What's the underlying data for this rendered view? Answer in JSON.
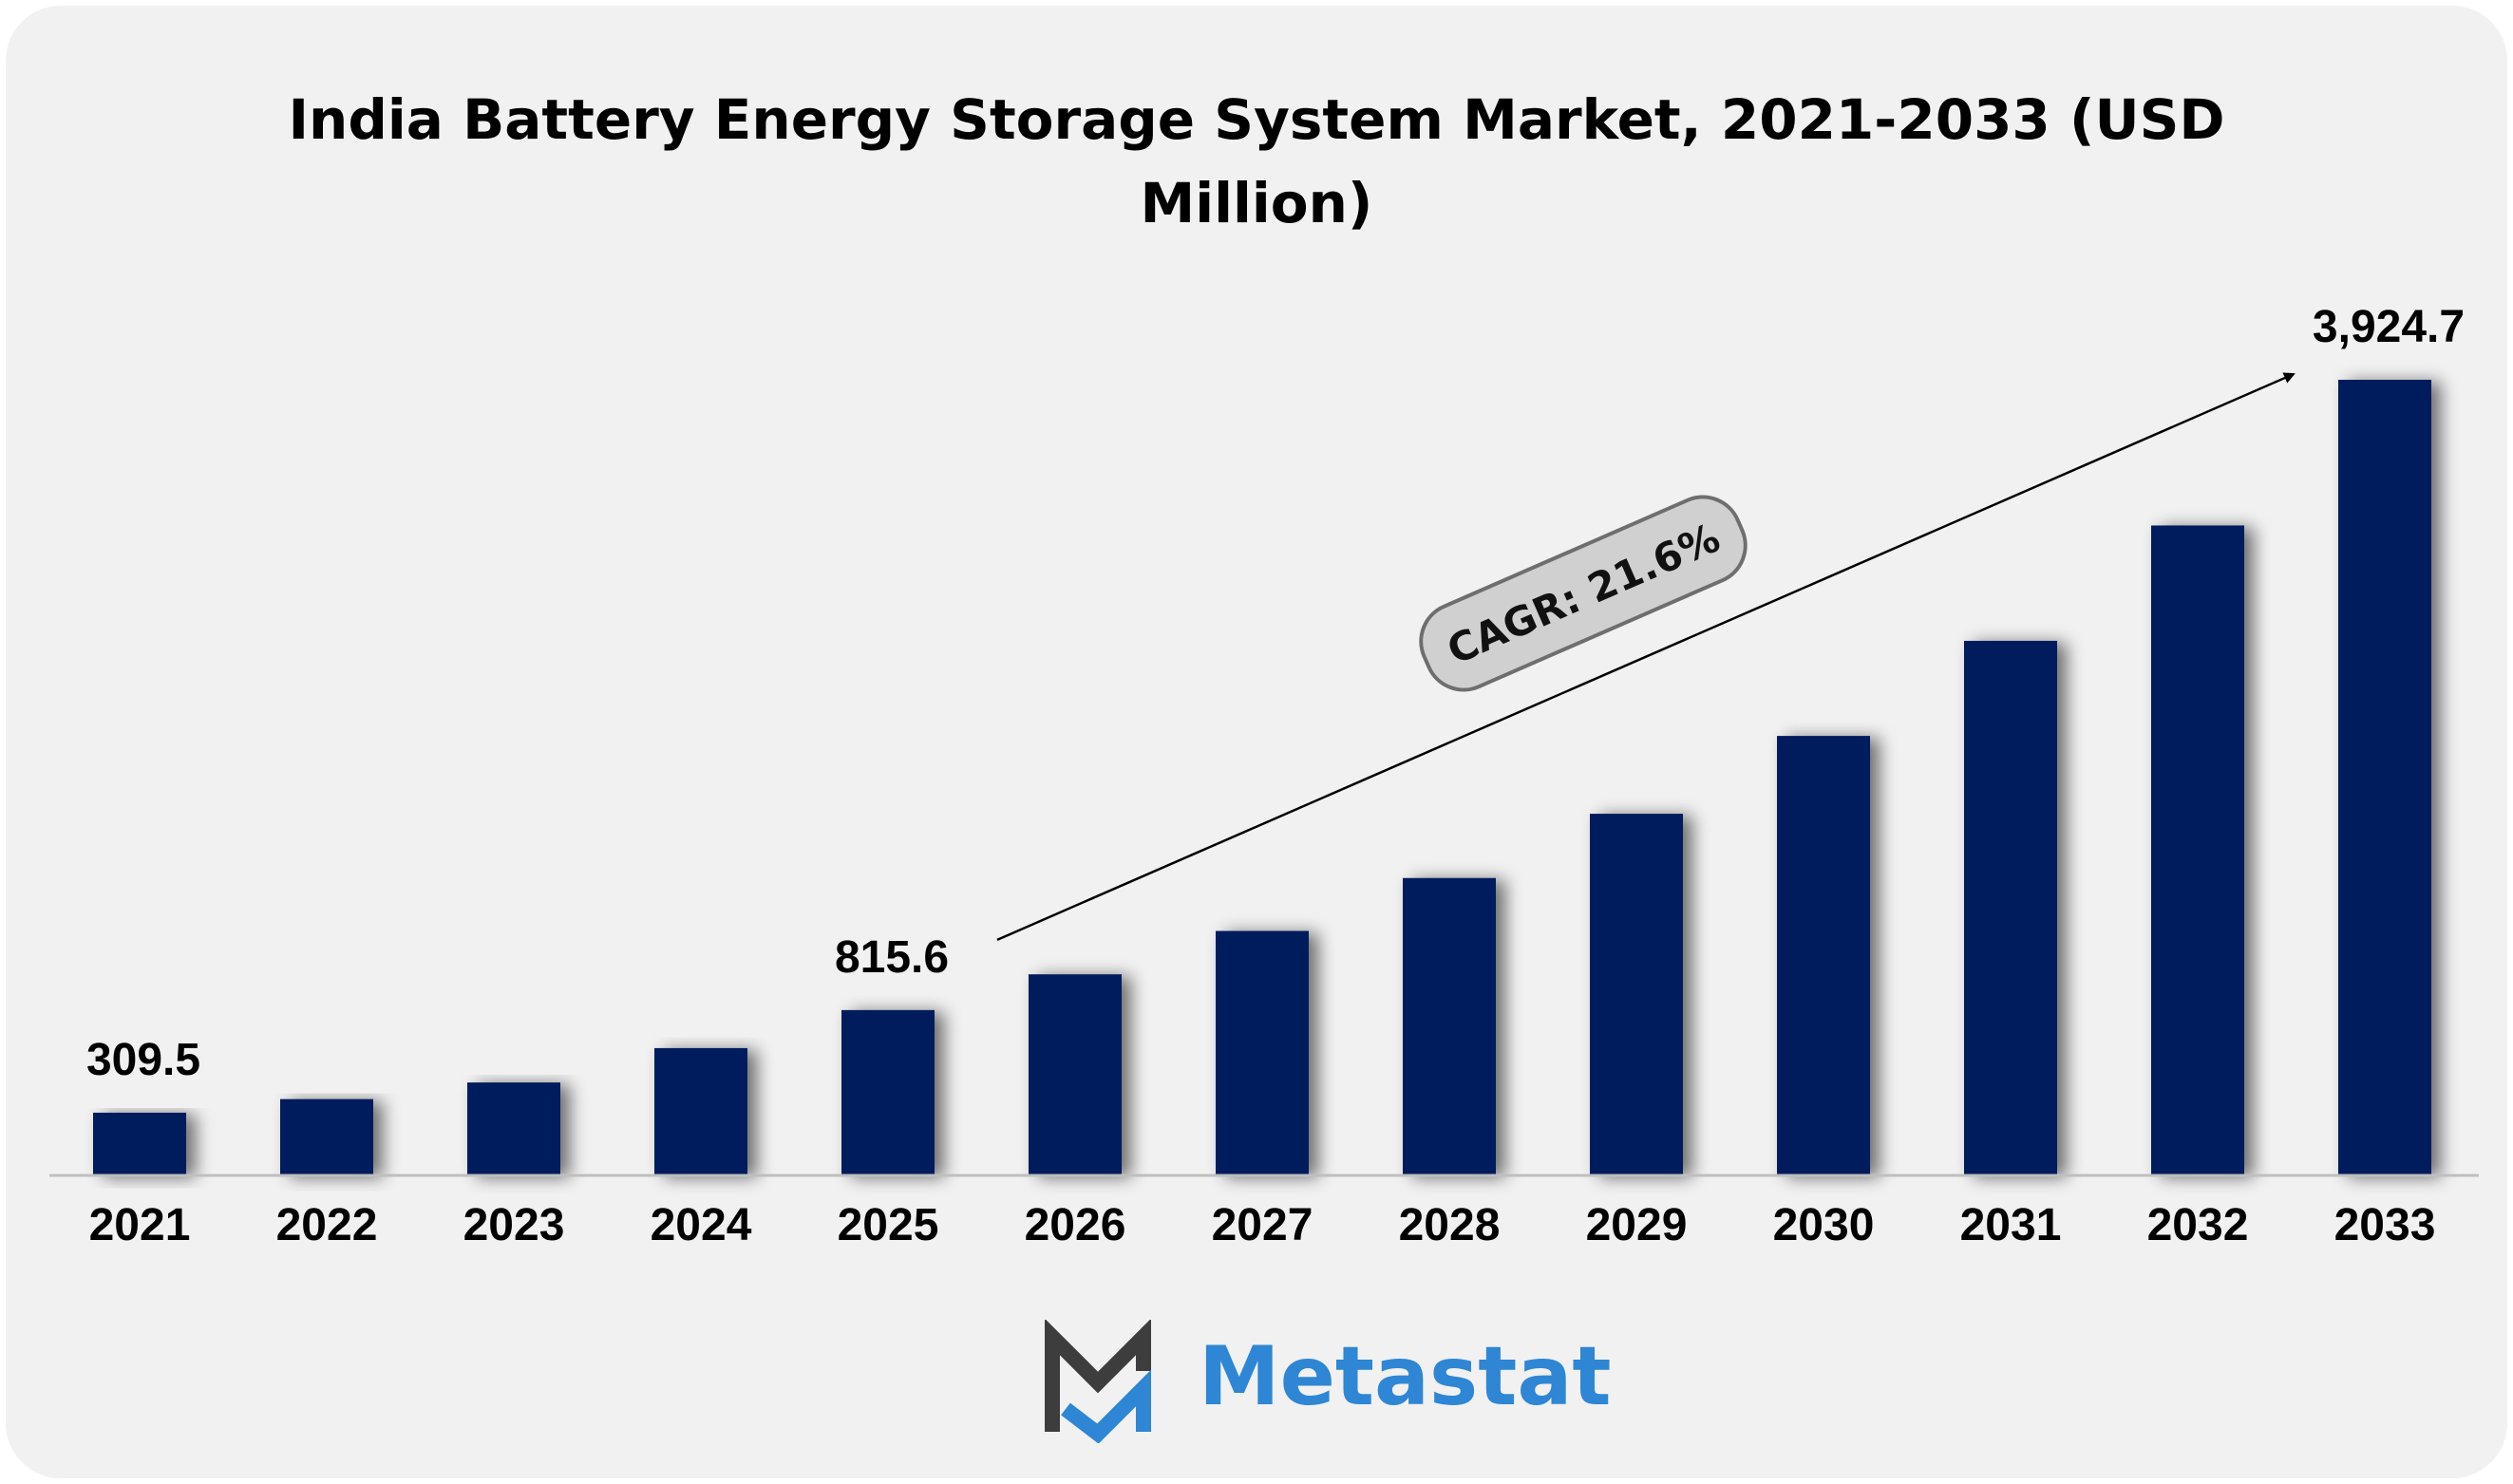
{
  "chart_data": {
    "type": "bar",
    "title": "India Battery Energy Storage System Market, 2021-2033 (USD Million)",
    "title_lines": [
      "India Battery Energy Storage System Market, 2021-2033 (USD",
      "Million)"
    ],
    "categories": [
      "2021",
      "2022",
      "2023",
      "2024",
      "2025",
      "2026",
      "2027",
      "2028",
      "2029",
      "2030",
      "2031",
      "2032",
      "2033"
    ],
    "values": [
      309.5,
      376.5,
      458.5,
      628.0,
      815.6,
      992.0,
      1206.0,
      1467.0,
      1784.0,
      2168.0,
      2637.0,
      3206.0,
      3924.7
    ],
    "data_labels": [
      {
        "category": "2021",
        "text": "309.5"
      },
      {
        "category": "2025",
        "text": "815.6"
      },
      {
        "category": "2033",
        "text": "3,924.7"
      }
    ],
    "annotation": {
      "text": "CAGR: 21.6%",
      "from_category": "2025",
      "to_category": "2033"
    },
    "xlabel": "",
    "ylabel": "",
    "ylim": [
      0,
      3924.7
    ],
    "grid": false,
    "legend": "none",
    "colors": {
      "bar": "#001f5c",
      "axis": "#bfbfbf",
      "card": "#f1f1f1",
      "badge": "#d0d0d0",
      "badge_border": "#6e6e6e"
    }
  },
  "branding": {
    "logo_text": "Metastat",
    "logo_icon": "metastat-m-icon",
    "colors": {
      "dark": "#3d3d3d",
      "accent": "#2e86d4"
    }
  }
}
